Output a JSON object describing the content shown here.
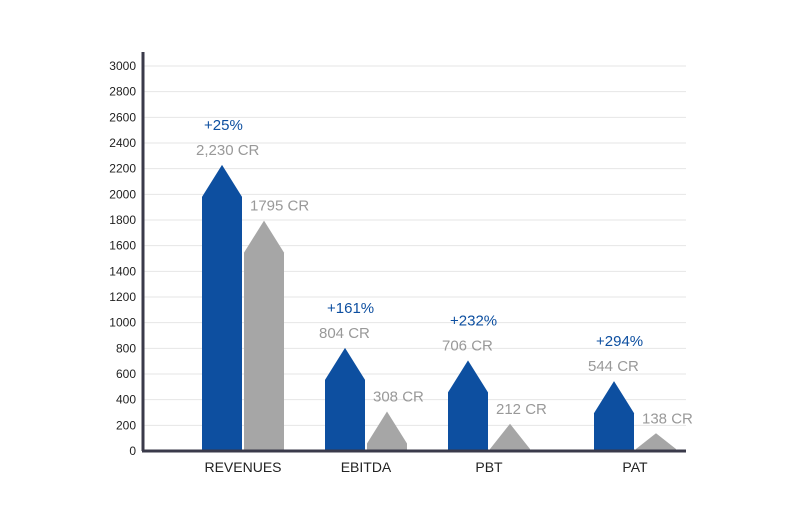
{
  "chart_data": {
    "type": "bar",
    "title": "",
    "xlabel": "",
    "ylabel": "",
    "ylim": [
      0,
      3000
    ],
    "yticks": [
      0,
      200,
      400,
      600,
      800,
      1000,
      1200,
      1400,
      1600,
      1800,
      2000,
      2200,
      2400,
      2600,
      2800,
      3000
    ],
    "grid": true,
    "legend": "none",
    "categories": [
      "REVENUES",
      "EBITDA",
      "PBT",
      "PAT"
    ],
    "series": [
      {
        "color": "#0d4fa0",
        "values": [
          2230,
          804,
          706,
          544
        ]
      },
      {
        "color": "#a6a6a6",
        "values": [
          1795,
          308,
          212,
          138
        ]
      }
    ],
    "annotations": {
      "growth": [
        "+25%",
        "+161%",
        "+232%",
        "+294%"
      ],
      "current_labels": [
        "2,230 CR",
        "804 CR",
        "706 CR",
        "544 CR"
      ],
      "previous_labels": [
        "1795 CR",
        "308 CR",
        "212 CR",
        "138 CR"
      ]
    },
    "colors": {
      "axis": "#3a3a4a",
      "grid": "#e6e6e6",
      "growth_text": "#0d4fa0",
      "value_text": "#999999"
    }
  }
}
